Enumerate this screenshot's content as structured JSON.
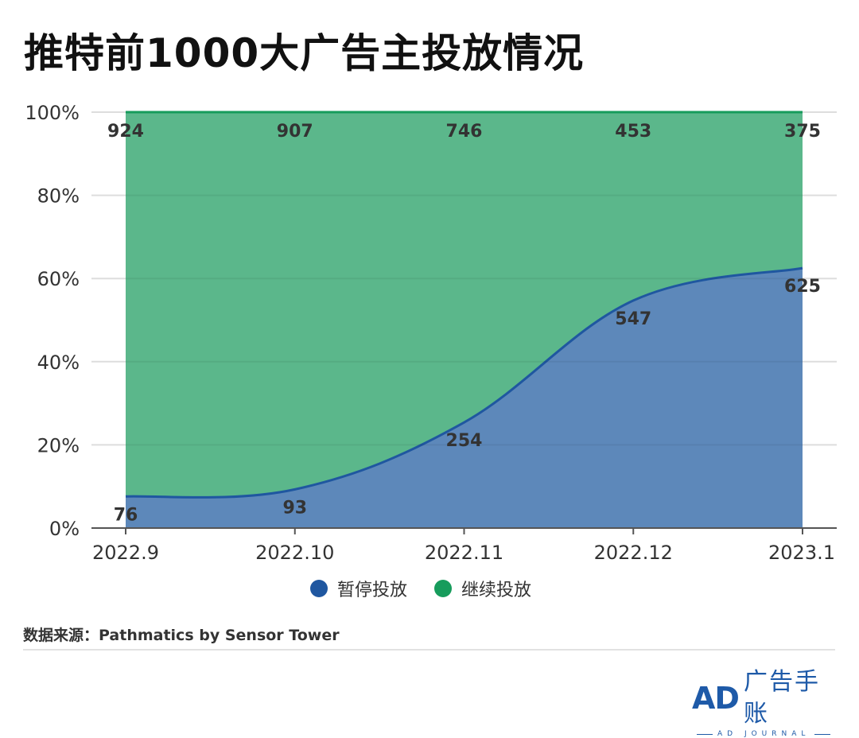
{
  "header": {
    "title": "推特前1000大广告主投放情况"
  },
  "chart_data": {
    "type": "area",
    "stacked": "percent",
    "title": "推特前1000大广告主投放情况",
    "xlabel": "",
    "ylabel": "",
    "categories": [
      "2022.9",
      "2022.10",
      "2022.11",
      "2022.12",
      "2023.1"
    ],
    "series": [
      {
        "name": "暂停投放",
        "values": [
          76,
          93,
          254,
          547,
          625
        ],
        "color": "#1f57a0",
        "fill": "#5d88ba"
      },
      {
        "name": "继续投放",
        "values": [
          924,
          907,
          746,
          453,
          375
        ],
        "color": "#179c5c",
        "fill": "#5bb78b"
      }
    ],
    "total": 1000,
    "ylim": [
      0,
      100
    ],
    "yticks": [
      "0%",
      "20%",
      "40%",
      "60%",
      "80%",
      "100%"
    ],
    "ytick_values": [
      0,
      20,
      40,
      60,
      80,
      100
    ],
    "grid": true,
    "legend": "bottom-center"
  },
  "legend": {
    "items": [
      {
        "label": "暂停投放",
        "color": "#1f57a0"
      },
      {
        "label": "继续投放",
        "color": "#179c5c"
      }
    ]
  },
  "footer": {
    "source": "数据来源：Pathmatics by Sensor Tower"
  },
  "logo": {
    "mark": "AD",
    "name": "广告手账",
    "sub": "AD JOURNAL"
  }
}
